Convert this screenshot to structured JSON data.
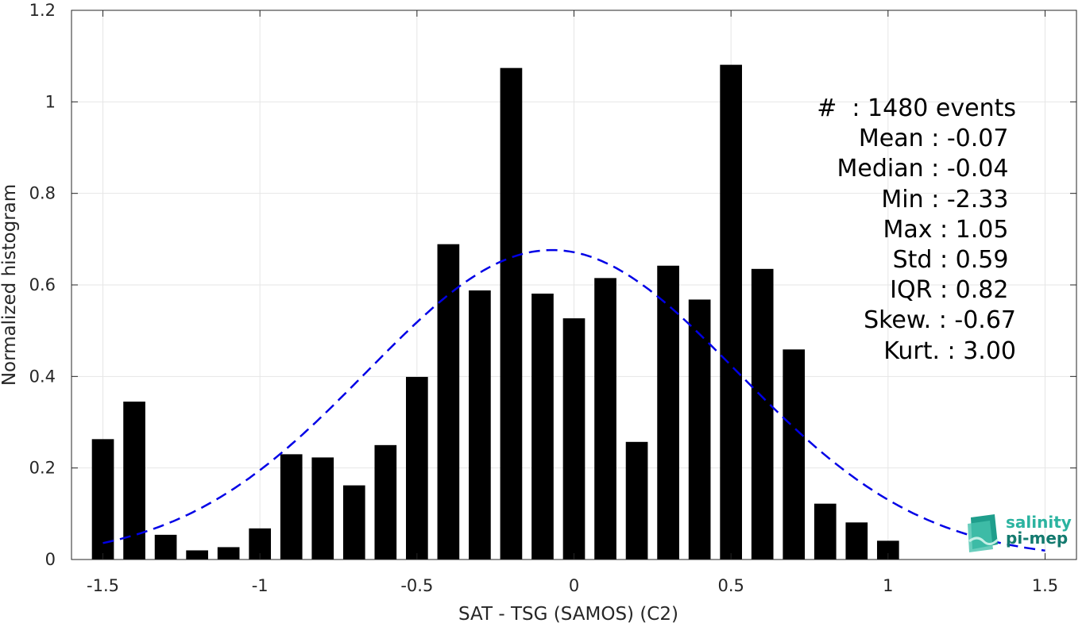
{
  "chart_data": {
    "type": "bar",
    "xlabel": "SAT - TSG (SAMOS) (C2)",
    "ylabel": "Normalized histogram",
    "xlim": [
      -1.6,
      1.6
    ],
    "ylim": [
      0,
      1.2
    ],
    "xticks": [
      "-1.5",
      "-1",
      "-0.5",
      "0",
      "0.5",
      "1",
      "1.5"
    ],
    "yticks": [
      "0",
      "0.2",
      "0.4",
      "0.6",
      "0.8",
      "1",
      "1.2"
    ],
    "grid": true,
    "bar_color": "#000000",
    "bin_width": 0.1,
    "x": [
      -1.5,
      -1.4,
      -1.3,
      -1.2,
      -1.1,
      -1.0,
      -0.9,
      -0.8,
      -0.7,
      -0.6,
      -0.5,
      -0.4,
      -0.3,
      -0.2,
      -0.1,
      0.0,
      0.1,
      0.2,
      0.3,
      0.4,
      0.5,
      0.6,
      0.7,
      0.8,
      0.9,
      1.0
    ],
    "values": [
      0.263,
      0.345,
      0.054,
      0.02,
      0.027,
      0.068,
      0.23,
      0.223,
      0.162,
      0.25,
      0.399,
      0.689,
      0.588,
      1.074,
      0.581,
      0.527,
      0.615,
      0.257,
      0.642,
      0.568,
      1.081,
      0.635,
      0.459,
      0.122,
      0.081,
      0.041
    ],
    "fit_curve": {
      "style": "dashed",
      "color": "#0000e6",
      "mean": -0.07,
      "std": 0.59,
      "x_range": [
        -1.5,
        1.5
      ]
    }
  },
  "stats": [
    "#  : 1480 events",
    "Mean : -0.07 ",
    "Median : -0.04 ",
    "Min : -2.33 ",
    "Max : 1.05 ",
    "Std : 0.59 ",
    "IQR : 0.82 ",
    "Skew. : -0.67",
    "Kurt. : 3.00"
  ],
  "logo": {
    "line1": "salinity",
    "line2": "pi-mep"
  }
}
